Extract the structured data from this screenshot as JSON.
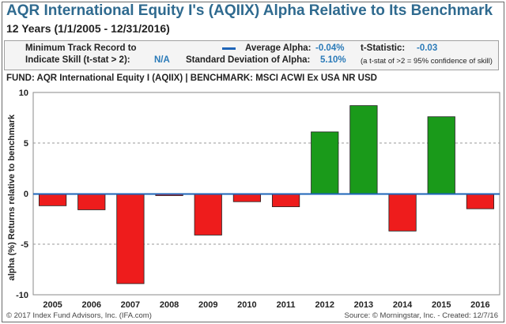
{
  "header": {
    "title": "AQR International Equity I's (AQIIX) Alpha Relative to Its Benchmark",
    "subtitle": "12 Years (1/1/2005 - 12/31/2016)"
  },
  "stats": {
    "track_record_label_1": "Minimum Track Record to",
    "track_record_label_2": "Indicate Skill (t-stat > 2):",
    "track_record_value": "N/A",
    "avg_alpha_label": "Average Alpha:",
    "avg_alpha_value": "-0.04%",
    "tstat_label": "t-Statistic:",
    "tstat_value": "-0.03",
    "stdev_label": "Standard Deviation of Alpha:",
    "stdev_value": "5.10%",
    "tstat_note": "(a t-stat of >2 = 95% confidence of skill)",
    "avg_line_color": "#1e64b8"
  },
  "fund_line": "FUND: AQR International Equity I (AQIIX)  | BENCHMARK: MSCI ACWI Ex USA NR USD",
  "footer": {
    "left": "© 2017 Index Fund Advisors, Inc. (IFA.com)",
    "right": "Source: © Morningstar, Inc. - Created: 12/7/16"
  },
  "chart_data": {
    "type": "bar",
    "categories": [
      "2005",
      "2006",
      "2007",
      "2008",
      "2009",
      "2010",
      "2011",
      "2012",
      "2013",
      "2014",
      "2015",
      "2016"
    ],
    "values": [
      -1.2,
      -1.6,
      -8.9,
      -0.2,
      -4.1,
      -0.8,
      -1.3,
      6.1,
      8.7,
      -3.7,
      7.6,
      -1.5
    ],
    "average_alpha": -0.04,
    "ylabel": "alpha (%) Returns relative to benchmark",
    "ylim": [
      -10,
      10
    ],
    "yticks": [
      10,
      5,
      0,
      -5,
      -10
    ],
    "ytick_labels": [
      "10",
      "5",
      "0",
      "-5",
      "-10"
    ],
    "grid": "horizontal dashed",
    "colors": {
      "positive": "#1a9a1a",
      "negative": "#ee1c1c",
      "average_line": "#1e64b8"
    }
  }
}
